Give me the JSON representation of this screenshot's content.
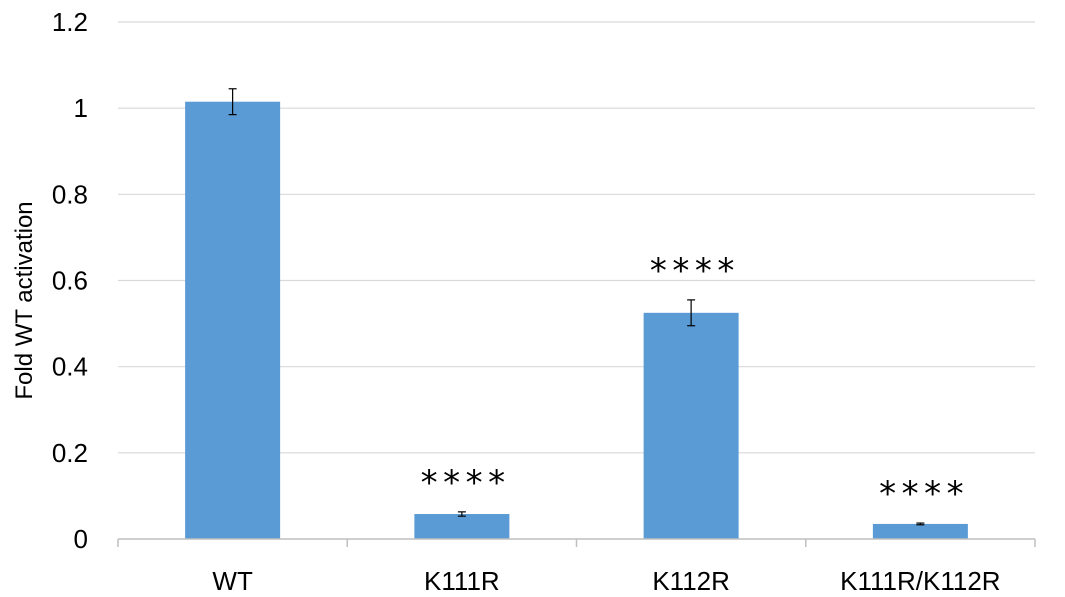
{
  "chart_data": {
    "type": "bar",
    "title": "",
    "xlabel": "",
    "ylabel": "Fold WT activation",
    "ylim": [
      0,
      1.2
    ],
    "yticks": [
      "0",
      "0.2",
      "0.4",
      "0.6",
      "0.8",
      "1",
      "1.2"
    ],
    "grid": true,
    "legend": "none",
    "categories": [
      "WT",
      "K111R",
      "K112R",
      "K111R/K112R"
    ],
    "values": [
      1.015,
      0.058,
      0.525,
      0.035
    ],
    "errors": [
      0.03,
      0.005,
      0.03,
      0.002
    ],
    "annotations": [
      "",
      "****",
      "****",
      "****"
    ],
    "colors": {
      "bar": "#5b9bd5",
      "grid": "#d9d9d9",
      "axis": "#bfbfbf",
      "error": "#000000"
    }
  }
}
